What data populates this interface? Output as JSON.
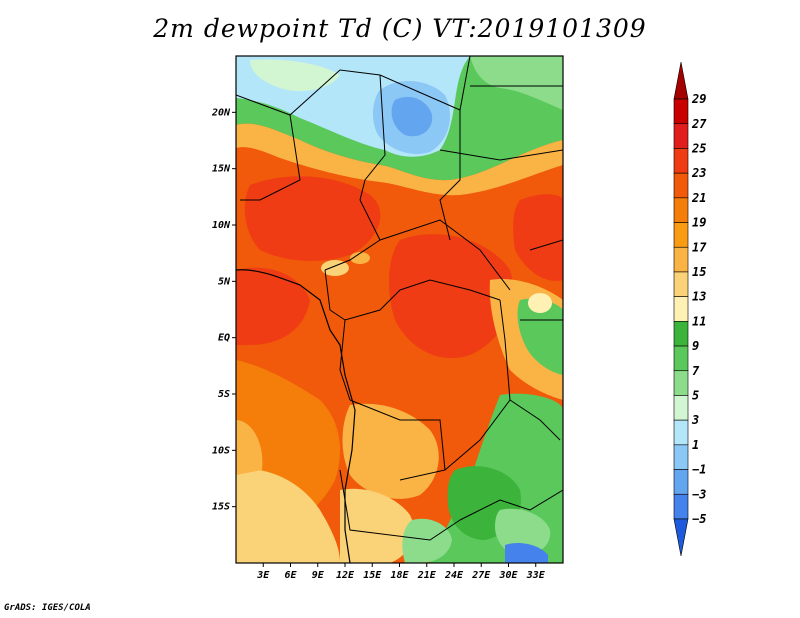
{
  "title": "2m dewpoint Td (C) VT:2019101309",
  "credit": "GrADS: IGES/COLA",
  "map": {
    "lon_range": [
      0,
      36
    ],
    "lat_range": [
      -20,
      25
    ],
    "lat_ticks": [
      {
        "value": 20,
        "label": "20N"
      },
      {
        "value": 15,
        "label": "15N"
      },
      {
        "value": 10,
        "label": "10N"
      },
      {
        "value": 5,
        "label": "5N"
      },
      {
        "value": 0,
        "label": "EQ"
      },
      {
        "value": -5,
        "label": "5S"
      },
      {
        "value": -10,
        "label": "10S"
      },
      {
        "value": -15,
        "label": "15S"
      }
    ],
    "lon_ticks": [
      {
        "value": 3,
        "label": "3E"
      },
      {
        "value": 6,
        "label": "6E"
      },
      {
        "value": 9,
        "label": "9E"
      },
      {
        "value": 12,
        "label": "12E"
      },
      {
        "value": 15,
        "label": "15E"
      },
      {
        "value": 18,
        "label": "18E"
      },
      {
        "value": 21,
        "label": "21E"
      },
      {
        "value": 24,
        "label": "24E"
      },
      {
        "value": 27,
        "label": "27E"
      },
      {
        "value": 30,
        "label": "30E"
      },
      {
        "value": 33,
        "label": "33E"
      }
    ]
  },
  "colorbar": {
    "labels": [
      "29",
      "27",
      "25",
      "23",
      "21",
      "19",
      "17",
      "15",
      "13",
      "11",
      "9",
      "7",
      "5",
      "3",
      "1",
      "−1",
      "−3",
      "−5"
    ],
    "colors": [
      "#a50000",
      "#c80000",
      "#e11e1e",
      "#f03c14",
      "#f05a0a",
      "#f57d0a",
      "#fa9b14",
      "#fab446",
      "#fad278",
      "#fff0b4",
      "#3cb43c",
      "#5ac85a",
      "#8cdc8c",
      "#d2f5d2",
      "#b4e6fa",
      "#8cc8f5",
      "#64a5f0",
      "#4682eb",
      "#1e5adc"
    ]
  }
}
